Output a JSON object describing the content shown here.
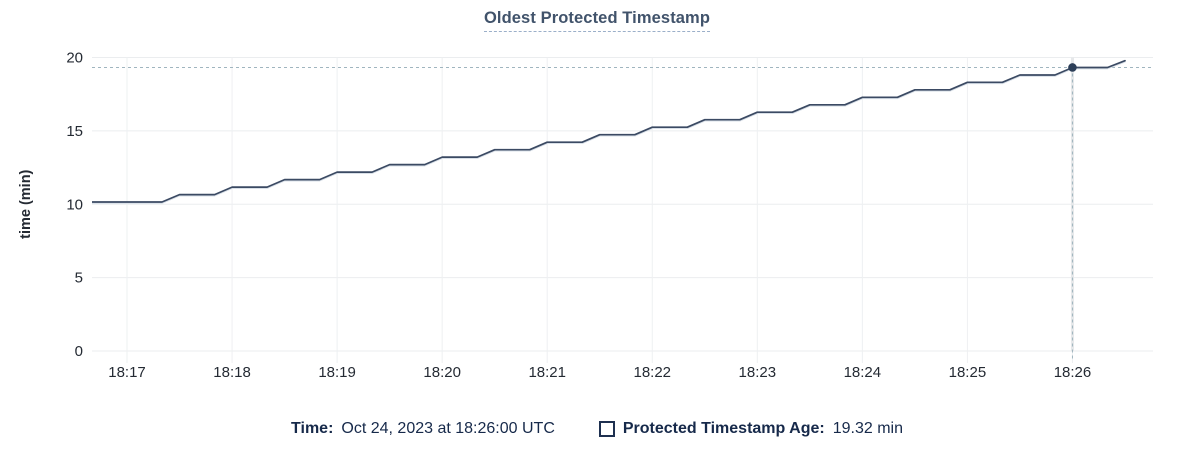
{
  "title": "Oldest Protected Timestamp",
  "legend": {
    "time_label": "Time:",
    "time_value": "Oct 24, 2023 at 18:26:00 UTC",
    "series_label": "Protected Timestamp Age:",
    "series_value": "19.32 min"
  },
  "colors": {
    "title": "#41536b",
    "title_underline": "#9bafc9",
    "line": "#3b4a63",
    "line_shadow": "#d9e0e8",
    "dot": "#2c3e58",
    "crosshair": "#a0b5bf",
    "grid_h": "#ebedef",
    "grid_v": "#eef0f2",
    "hover_band": "#e6e8ea",
    "axis_text": "#242a33",
    "legend_text": "#16294a",
    "swatch_border": "#1e3050"
  },
  "chart_data": {
    "type": "line",
    "title": "Oldest Protected Timestamp",
    "xlabel": "",
    "ylabel": "time (min)",
    "ylim": [
      0,
      20
    ],
    "y_ticks": [
      0,
      5,
      10,
      15,
      20
    ],
    "x_ticks": [
      "18:17",
      "18:18",
      "18:19",
      "18:20",
      "18:21",
      "18:22",
      "18:23",
      "18:24",
      "18:25",
      "18:26"
    ],
    "x_range": [
      "18:16:40",
      "18:26:46"
    ],
    "grid": true,
    "legend_position": "bottom",
    "crosshair": {
      "x": "18:26:00",
      "y": 19.32
    },
    "series": [
      {
        "name": "Protected Timestamp Age",
        "unit": "min",
        "points": [
          [
            "18:16:40",
            10.15
          ],
          [
            "18:16:50",
            10.15
          ],
          [
            "18:17:00",
            10.15
          ],
          [
            "18:17:10",
            10.15
          ],
          [
            "18:17:20",
            10.15
          ],
          [
            "18:17:30",
            10.66
          ],
          [
            "18:17:40",
            10.66
          ],
          [
            "18:17:50",
            10.66
          ],
          [
            "18:18:00",
            11.17
          ],
          [
            "18:18:10",
            11.17
          ],
          [
            "18:18:20",
            11.17
          ],
          [
            "18:18:30",
            11.68
          ],
          [
            "18:18:40",
            11.68
          ],
          [
            "18:18:50",
            11.68
          ],
          [
            "18:19:00",
            12.19
          ],
          [
            "18:19:10",
            12.19
          ],
          [
            "18:19:20",
            12.19
          ],
          [
            "18:19:30",
            12.7
          ],
          [
            "18:19:40",
            12.7
          ],
          [
            "18:19:50",
            12.7
          ],
          [
            "18:20:00",
            13.21
          ],
          [
            "18:20:10",
            13.21
          ],
          [
            "18:20:20",
            13.21
          ],
          [
            "18:20:30",
            13.72
          ],
          [
            "18:20:40",
            13.72
          ],
          [
            "18:20:50",
            13.72
          ],
          [
            "18:21:00",
            14.23
          ],
          [
            "18:21:10",
            14.23
          ],
          [
            "18:21:20",
            14.23
          ],
          [
            "18:21:30",
            14.74
          ],
          [
            "18:21:40",
            14.74
          ],
          [
            "18:21:50",
            14.74
          ],
          [
            "18:22:00",
            15.25
          ],
          [
            "18:22:10",
            15.25
          ],
          [
            "18:22:20",
            15.25
          ],
          [
            "18:22:30",
            15.76
          ],
          [
            "18:22:40",
            15.76
          ],
          [
            "18:22:50",
            15.76
          ],
          [
            "18:23:00",
            16.27
          ],
          [
            "18:23:10",
            16.27
          ],
          [
            "18:23:20",
            16.27
          ],
          [
            "18:23:30",
            16.78
          ],
          [
            "18:23:40",
            16.78
          ],
          [
            "18:23:50",
            16.78
          ],
          [
            "18:24:00",
            17.29
          ],
          [
            "18:24:10",
            17.29
          ],
          [
            "18:24:20",
            17.29
          ],
          [
            "18:24:30",
            17.8
          ],
          [
            "18:24:40",
            17.8
          ],
          [
            "18:24:50",
            17.8
          ],
          [
            "18:25:00",
            18.31
          ],
          [
            "18:25:10",
            18.31
          ],
          [
            "18:25:20",
            18.31
          ],
          [
            "18:25:30",
            18.81
          ],
          [
            "18:25:40",
            18.81
          ],
          [
            "18:25:50",
            18.81
          ],
          [
            "18:26:00",
            19.32
          ],
          [
            "18:26:10",
            19.32
          ],
          [
            "18:26:20",
            19.32
          ],
          [
            "18:26:30",
            19.78
          ]
        ]
      }
    ]
  }
}
